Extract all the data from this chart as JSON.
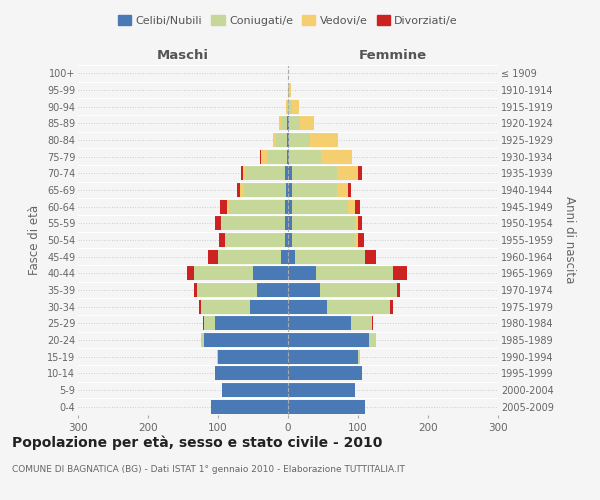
{
  "age_groups": [
    "0-4",
    "5-9",
    "10-14",
    "15-19",
    "20-24",
    "25-29",
    "30-34",
    "35-39",
    "40-44",
    "45-49",
    "50-54",
    "55-59",
    "60-64",
    "65-69",
    "70-74",
    "75-79",
    "80-84",
    "85-89",
    "90-94",
    "95-99",
    "100+"
  ],
  "birth_years": [
    "2005-2009",
    "2000-2004",
    "1995-1999",
    "1990-1994",
    "1985-1989",
    "1980-1984",
    "1975-1979",
    "1970-1974",
    "1965-1969",
    "1960-1964",
    "1955-1959",
    "1950-1954",
    "1945-1949",
    "1940-1944",
    "1935-1939",
    "1930-1934",
    "1925-1929",
    "1920-1924",
    "1915-1919",
    "1910-1914",
    "≤ 1909"
  ],
  "male": {
    "celibi": [
      110,
      95,
      105,
      100,
      120,
      105,
      55,
      45,
      50,
      10,
      5,
      4,
      4,
      3,
      5,
      2,
      2,
      2,
      0,
      0,
      0
    ],
    "coniugati": [
      0,
      0,
      0,
      2,
      5,
      15,
      70,
      85,
      85,
      90,
      85,
      90,
      80,
      60,
      55,
      28,
      15,
      8,
      2,
      0,
      0
    ],
    "vedovi": [
      0,
      0,
      0,
      0,
      0,
      0,
      0,
      0,
      0,
      0,
      0,
      2,
      3,
      5,
      5,
      8,
      5,
      3,
      1,
      0,
      0
    ],
    "divorziati": [
      0,
      0,
      0,
      0,
      0,
      2,
      2,
      5,
      10,
      15,
      8,
      8,
      10,
      5,
      2,
      2,
      0,
      0,
      0,
      0,
      0
    ]
  },
  "female": {
    "nubili": [
      110,
      95,
      105,
      100,
      115,
      90,
      55,
      45,
      40,
      10,
      5,
      5,
      5,
      5,
      5,
      2,
      2,
      2,
      0,
      0,
      0
    ],
    "coniugate": [
      0,
      0,
      0,
      3,
      10,
      30,
      90,
      110,
      110,
      100,
      90,
      90,
      80,
      65,
      65,
      45,
      30,
      15,
      5,
      2,
      0
    ],
    "vedove": [
      0,
      0,
      0,
      0,
      0,
      0,
      0,
      0,
      0,
      0,
      5,
      5,
      10,
      15,
      30,
      45,
      40,
      20,
      10,
      2,
      0
    ],
    "divorziate": [
      0,
      0,
      0,
      0,
      0,
      2,
      5,
      5,
      20,
      15,
      8,
      5,
      8,
      5,
      5,
      0,
      0,
      0,
      0,
      0,
      0
    ]
  },
  "colors": {
    "celibi": "#4a7ab5",
    "coniugati": "#c5d89a",
    "vedovi": "#f5ce70",
    "divorziati": "#cc2222"
  },
  "title": "Popolazione per età, sesso e stato civile - 2010",
  "subtitle": "COMUNE DI BAGNATICA (BG) - Dati ISTAT 1° gennaio 2010 - Elaborazione TUTTITALIA.IT",
  "xlabel_left": "Maschi",
  "xlabel_right": "Femmine",
  "ylabel_left": "Fasce di età",
  "ylabel_right": "Anni di nascita",
  "xlim": 300,
  "bg_color": "#f5f5f5",
  "grid_color": "#cccccc"
}
